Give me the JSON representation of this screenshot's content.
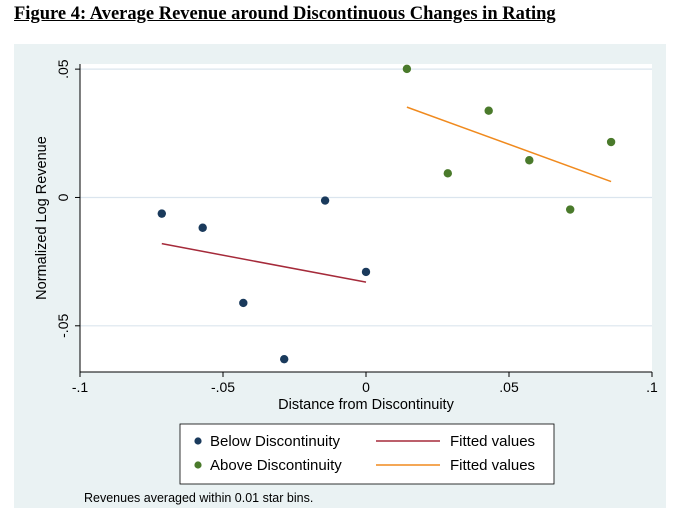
{
  "figure_title": "Figure 4: Average Revenue around Discontinuous Changes in Rating",
  "note": "Revenues averaged within 0.01 star bins.",
  "colors": {
    "below": "#1a3a5c",
    "above": "#4a7a2b",
    "fit_below": "#a52a3a",
    "fit_above": "#f08a1e",
    "grid": "#dbe5ee",
    "plot_bg": "#ffffff",
    "outer_bg": "#eaf2f3"
  },
  "chart_data": {
    "type": "scatter",
    "xlabel": "Distance from Discontinuity",
    "ylabel": "Normalized Log Revenue",
    "xlim": [
      -0.1,
      0.1
    ],
    "ylim": [
      -0.068,
      0.052
    ],
    "x_ticks": [
      {
        "value": -0.1,
        "label": "-.1"
      },
      {
        "value": -0.05,
        "label": "-.05"
      },
      {
        "value": 0,
        "label": "0"
      },
      {
        "value": 0.05,
        "label": ".05"
      },
      {
        "value": 0.1,
        "label": ".1"
      }
    ],
    "y_ticks": [
      {
        "value": -0.05,
        "label": "-.05"
      },
      {
        "value": 0,
        "label": "0"
      },
      {
        "value": 0.05,
        "label": ".05"
      }
    ],
    "grid": true,
    "legend_position": "bottom",
    "series": [
      {
        "name": "Below Discontinuity",
        "kind": "scatter",
        "color_key": "below",
        "points": [
          {
            "x": -0.0714,
            "y": -0.0063
          },
          {
            "x": -0.0571,
            "y": -0.0118
          },
          {
            "x": -0.0429,
            "y": -0.0411
          },
          {
            "x": -0.0286,
            "y": -0.063
          },
          {
            "x": -0.0143,
            "y": -0.0012
          },
          {
            "x": 0.0,
            "y": -0.029
          }
        ]
      },
      {
        "name": "Above Discontinuity",
        "kind": "scatter",
        "color_key": "above",
        "points": [
          {
            "x": 0.0143,
            "y": 0.0501
          },
          {
            "x": 0.0286,
            "y": 0.0094
          },
          {
            "x": 0.0429,
            "y": 0.0338
          },
          {
            "x": 0.0571,
            "y": 0.0145
          },
          {
            "x": 0.0714,
            "y": -0.0047
          },
          {
            "x": 0.0857,
            "y": 0.0216
          }
        ]
      },
      {
        "name": "Fitted values",
        "kind": "line",
        "color_key": "fit_below",
        "points": [
          {
            "x": -0.0714,
            "y": -0.018
          },
          {
            "x": 0.0,
            "y": -0.033
          }
        ]
      },
      {
        "name": "Fitted values",
        "kind": "line",
        "color_key": "fit_above",
        "points": [
          {
            "x": 0.0143,
            "y": 0.0352
          },
          {
            "x": 0.0857,
            "y": 0.0062
          }
        ]
      }
    ]
  }
}
